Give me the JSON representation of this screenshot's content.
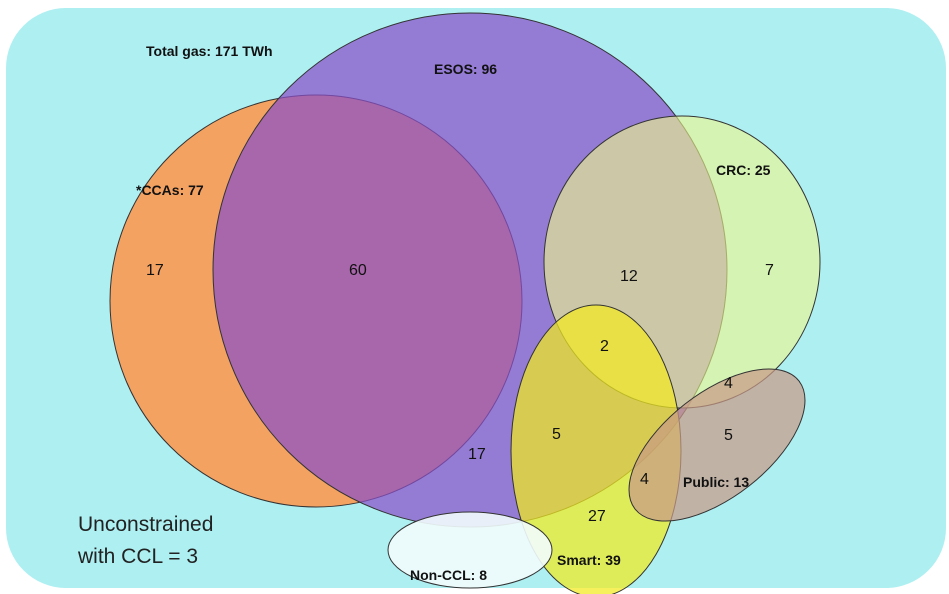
{
  "diagram": {
    "title": "Total gas:  171 TWh",
    "note_line1": "Unconstrained",
    "note_line2": "with CCL = 3",
    "colors": {
      "background": "#aeeff2",
      "ccas": "#f4a261",
      "esos": "#8a4fc8",
      "crc": "#eef58a",
      "smart": "#f2ea1e",
      "noncc": "#f2fcfd",
      "public": "#c89a86",
      "outline": "#333333"
    },
    "sets": [
      {
        "id": "ccas",
        "label": "*CCAs: 77"
      },
      {
        "id": "esos",
        "label": "ESOS: 96"
      },
      {
        "id": "crc",
        "label": "CRC: 25"
      },
      {
        "id": "smart",
        "label": "Smart: 39"
      },
      {
        "id": "noncc",
        "label": "Non-CCL: 8"
      },
      {
        "id": "public",
        "label": "Public: 13"
      }
    ],
    "regions": [
      {
        "id": "ccas-only",
        "value": "17"
      },
      {
        "id": "ccas-esos",
        "value": "60"
      },
      {
        "id": "esos-crc",
        "value": "12"
      },
      {
        "id": "crc-only",
        "value": "7"
      },
      {
        "id": "esos-crc-smart",
        "value": "2"
      },
      {
        "id": "crc-public",
        "value": "4"
      },
      {
        "id": "public-only",
        "value": "5"
      },
      {
        "id": "esos-smart",
        "value": "5"
      },
      {
        "id": "esos-only",
        "value": "17"
      },
      {
        "id": "smart-public",
        "value": "4"
      },
      {
        "id": "smart-only",
        "value": "27"
      }
    ]
  }
}
